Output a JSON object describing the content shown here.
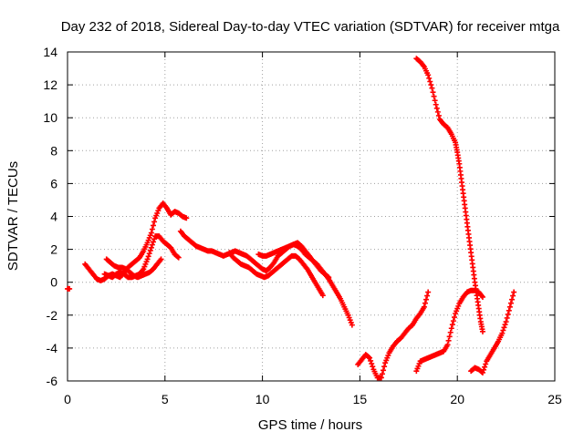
{
  "chart_data": {
    "type": "scatter",
    "title": "Day 232 of 2018, Sidereal Day-to-day VTEC variation (SDTVAR) for receiver mtga",
    "xlabel": "GPS time / hours",
    "ylabel": "SDTVAR / TECUs",
    "xlim": [
      0,
      25
    ],
    "ylim": [
      -6,
      14
    ],
    "xticks": [
      0,
      5,
      10,
      15,
      20,
      25
    ],
    "yticks": [
      -6,
      -4,
      -2,
      0,
      2,
      4,
      6,
      8,
      10,
      12,
      14
    ],
    "grid": true,
    "legend": "none",
    "marker": "+",
    "color": "#ff0000",
    "series": [
      {
        "points": [
          [
            -0.1,
            -0.4
          ],
          [
            0.1,
            -0.4
          ]
        ]
      },
      {
        "points": [
          [
            0.9,
            1.1
          ],
          [
            1.1,
            0.8
          ],
          [
            1.3,
            0.5
          ],
          [
            1.5,
            0.2
          ],
          [
            1.7,
            0.1
          ],
          [
            1.9,
            0.2
          ],
          [
            2.1,
            0.4
          ],
          [
            2.3,
            0.5
          ],
          [
            2.5,
            0.4
          ],
          [
            2.7,
            0.3
          ],
          [
            2.9,
            0.6
          ],
          [
            3.1,
            0.9
          ],
          [
            3.3,
            1.1
          ],
          [
            3.5,
            1.3
          ],
          [
            3.7,
            1.5
          ],
          [
            3.9,
            1.9
          ],
          [
            4.1,
            2.4
          ],
          [
            4.3,
            3.0
          ],
          [
            4.5,
            3.9
          ],
          [
            4.7,
            4.5
          ],
          [
            4.9,
            4.8
          ],
          [
            5.1,
            4.5
          ],
          [
            5.3,
            4.1
          ],
          [
            5.5,
            4.3
          ],
          [
            5.7,
            4.2
          ],
          [
            5.9,
            4.0
          ],
          [
            6.1,
            3.9
          ]
        ]
      },
      {
        "points": [
          [
            1.9,
            0.5
          ],
          [
            2.1,
            0.4
          ],
          [
            2.3,
            0.3
          ],
          [
            2.5,
            0.5
          ],
          [
            2.7,
            0.6
          ],
          [
            2.9,
            0.5
          ],
          [
            3.1,
            0.3
          ],
          [
            3.3,
            0.3
          ],
          [
            3.5,
            0.4
          ],
          [
            3.7,
            0.5
          ],
          [
            3.9,
            0.8
          ],
          [
            4.1,
            1.4
          ],
          [
            4.3,
            2.1
          ],
          [
            4.5,
            2.8
          ],
          [
            4.7,
            2.8
          ],
          [
            4.9,
            2.5
          ],
          [
            5.1,
            2.3
          ],
          [
            5.3,
            2.1
          ],
          [
            5.5,
            1.7
          ],
          [
            5.7,
            1.5
          ]
        ]
      },
      {
        "points": [
          [
            2.0,
            1.4
          ],
          [
            2.2,
            1.2
          ],
          [
            2.4,
            1.0
          ],
          [
            2.6,
            0.9
          ],
          [
            2.8,
            0.9
          ],
          [
            3.0,
            0.8
          ],
          [
            3.2,
            0.6
          ],
          [
            3.4,
            0.4
          ],
          [
            3.6,
            0.3
          ],
          [
            3.8,
            0.4
          ],
          [
            4.0,
            0.5
          ],
          [
            4.2,
            0.6
          ],
          [
            4.4,
            0.8
          ],
          [
            4.6,
            1.1
          ],
          [
            4.8,
            1.4
          ]
        ]
      },
      {
        "points": [
          [
            5.8,
            3.1
          ],
          [
            6.0,
            2.8
          ],
          [
            6.2,
            2.6
          ],
          [
            6.4,
            2.4
          ],
          [
            6.6,
            2.2
          ],
          [
            6.8,
            2.1
          ],
          [
            7.0,
            2.0
          ],
          [
            7.2,
            1.9
          ],
          [
            7.4,
            1.9
          ],
          [
            7.6,
            1.8
          ],
          [
            7.8,
            1.7
          ],
          [
            8.0,
            1.6
          ],
          [
            8.2,
            1.7
          ],
          [
            8.4,
            1.8
          ],
          [
            8.6,
            1.9
          ],
          [
            8.8,
            1.8
          ],
          [
            9.0,
            1.7
          ],
          [
            9.2,
            1.6
          ],
          [
            9.4,
            1.4
          ],
          [
            9.6,
            1.2
          ],
          [
            9.8,
            1.0
          ],
          [
            10.0,
            0.8
          ],
          [
            10.2,
            0.7
          ],
          [
            10.4,
            0.9
          ],
          [
            10.6,
            1.2
          ],
          [
            10.8,
            1.6
          ],
          [
            11.0,
            1.8
          ],
          [
            11.2,
            2.0
          ],
          [
            11.4,
            2.2
          ],
          [
            11.6,
            2.3
          ],
          [
            11.8,
            2.2
          ],
          [
            12.0,
            2.0
          ],
          [
            12.2,
            1.7
          ],
          [
            12.4,
            1.5
          ],
          [
            12.6,
            1.3
          ],
          [
            12.8,
            1.1
          ],
          [
            13.0,
            0.8
          ],
          [
            13.2,
            0.5
          ],
          [
            13.4,
            0.2
          ],
          [
            13.6,
            -0.2
          ],
          [
            13.8,
            -0.6
          ],
          [
            14.0,
            -1.0
          ],
          [
            14.2,
            -1.5
          ],
          [
            14.4,
            -2.0
          ],
          [
            14.6,
            -2.6
          ]
        ]
      },
      {
        "points": [
          [
            8.3,
            1.8
          ],
          [
            8.5,
            1.5
          ],
          [
            8.7,
            1.3
          ],
          [
            8.9,
            1.1
          ],
          [
            9.1,
            1.0
          ],
          [
            9.3,
            0.9
          ],
          [
            9.5,
            0.7
          ],
          [
            9.7,
            0.5
          ],
          [
            9.9,
            0.4
          ],
          [
            10.1,
            0.3
          ],
          [
            10.3,
            0.4
          ],
          [
            10.5,
            0.6
          ],
          [
            10.7,
            0.8
          ],
          [
            10.9,
            1.0
          ],
          [
            11.1,
            1.2
          ],
          [
            11.3,
            1.4
          ],
          [
            11.5,
            1.6
          ],
          [
            11.7,
            1.6
          ],
          [
            11.9,
            1.4
          ],
          [
            12.1,
            1.1
          ],
          [
            12.3,
            0.8
          ],
          [
            12.5,
            0.4
          ],
          [
            12.7,
            0.0
          ],
          [
            12.9,
            -0.4
          ],
          [
            13.1,
            -0.8
          ]
        ]
      },
      {
        "points": [
          [
            9.8,
            1.7
          ],
          [
            10.0,
            1.6
          ],
          [
            10.2,
            1.6
          ],
          [
            10.4,
            1.7
          ],
          [
            10.6,
            1.8
          ],
          [
            10.8,
            1.9
          ],
          [
            11.0,
            2.0
          ],
          [
            11.2,
            2.1
          ],
          [
            11.4,
            2.2
          ],
          [
            11.6,
            2.3
          ],
          [
            11.8,
            2.4
          ],
          [
            12.0,
            2.2
          ],
          [
            12.2,
            1.9
          ],
          [
            12.4,
            1.6
          ],
          [
            12.6,
            1.3
          ],
          [
            12.8,
            1.0
          ],
          [
            13.0,
            0.7
          ],
          [
            13.2,
            0.5
          ],
          [
            13.4,
            0.3
          ]
        ]
      },
      {
        "points": [
          [
            14.9,
            -5.0
          ],
          [
            15.1,
            -4.7
          ],
          [
            15.3,
            -4.4
          ],
          [
            15.5,
            -4.6
          ],
          [
            15.7,
            -5.3
          ],
          [
            15.9,
            -5.8
          ],
          [
            16.1,
            -5.8
          ],
          [
            16.3,
            -4.9
          ],
          [
            16.5,
            -4.3
          ],
          [
            16.7,
            -3.9
          ],
          [
            16.9,
            -3.6
          ],
          [
            17.1,
            -3.4
          ],
          [
            17.3,
            -3.1
          ],
          [
            17.5,
            -2.8
          ],
          [
            17.7,
            -2.6
          ],
          [
            17.9,
            -2.2
          ],
          [
            18.1,
            -1.9
          ],
          [
            18.3,
            -1.5
          ],
          [
            18.5,
            -0.6
          ]
        ]
      },
      {
        "points": [
          [
            17.9,
            13.6
          ],
          [
            18.1,
            13.4
          ],
          [
            18.3,
            13.1
          ],
          [
            18.5,
            12.6
          ],
          [
            18.7,
            11.8
          ],
          [
            18.9,
            10.8
          ],
          [
            19.1,
            9.9
          ],
          [
            19.3,
            9.6
          ],
          [
            19.5,
            9.4
          ],
          [
            19.7,
            9.0
          ],
          [
            19.9,
            8.5
          ],
          [
            20.0,
            7.9
          ],
          [
            20.1,
            7.2
          ],
          [
            20.2,
            6.3
          ],
          [
            20.3,
            5.4
          ],
          [
            20.4,
            4.5
          ],
          [
            20.5,
            3.6
          ],
          [
            20.6,
            2.7
          ],
          [
            20.7,
            1.8
          ],
          [
            20.8,
            0.9
          ],
          [
            20.9,
            0.0
          ],
          [
            21.0,
            -0.8
          ],
          [
            21.1,
            -1.6
          ],
          [
            21.2,
            -2.4
          ],
          [
            21.3,
            -3.0
          ]
        ]
      },
      {
        "points": [
          [
            17.9,
            -5.4
          ],
          [
            18.1,
            -4.8
          ],
          [
            18.3,
            -4.7
          ],
          [
            18.5,
            -4.6
          ],
          [
            18.7,
            -4.5
          ],
          [
            18.9,
            -4.4
          ],
          [
            19.1,
            -4.3
          ],
          [
            19.3,
            -4.2
          ],
          [
            19.5,
            -3.8
          ],
          [
            19.7,
            -2.8
          ],
          [
            19.9,
            -1.9
          ],
          [
            20.1,
            -1.3
          ],
          [
            20.3,
            -0.9
          ],
          [
            20.5,
            -0.6
          ],
          [
            20.7,
            -0.5
          ],
          [
            20.9,
            -0.5
          ],
          [
            21.1,
            -0.6
          ],
          [
            21.3,
            -0.9
          ]
        ]
      },
      {
        "points": [
          [
            20.7,
            -5.4
          ],
          [
            20.9,
            -5.2
          ],
          [
            21.1,
            -5.3
          ],
          [
            21.3,
            -5.5
          ],
          [
            21.5,
            -4.8
          ],
          [
            21.7,
            -4.4
          ],
          [
            21.9,
            -4.0
          ],
          [
            22.1,
            -3.6
          ],
          [
            22.3,
            -3.1
          ],
          [
            22.5,
            -2.4
          ],
          [
            22.7,
            -1.5
          ],
          [
            22.9,
            -0.6
          ]
        ]
      }
    ]
  }
}
